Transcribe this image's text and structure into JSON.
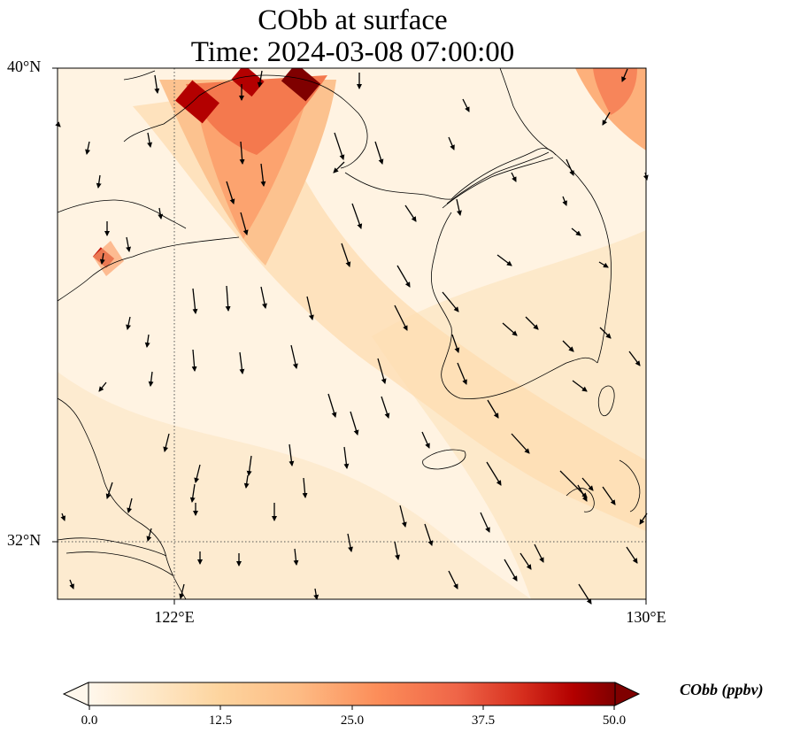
{
  "figure": {
    "title_line1": "CObb at surface",
    "title_line2": "Time: 2024-03-08 07:00:00"
  },
  "axes": {
    "lat_labels": [
      "40°N",
      "32°N"
    ],
    "lon_labels": [
      "122°E",
      "130°E"
    ],
    "lon_range": [
      120,
      130
    ],
    "lat_range": [
      31,
      40
    ],
    "gridlines": "dotted at 122°E and 32°N"
  },
  "colorbar": {
    "label": "CObb (ppbv)",
    "colormap": "OrRd",
    "ticks": [
      "0.0",
      "12.5",
      "25.0",
      "37.5",
      "50.0"
    ],
    "range": [
      0,
      50
    ],
    "extend": "both",
    "colors": [
      "#fff7ec",
      "#fdd49e",
      "#fc8d59",
      "#d7301f",
      "#7f0000"
    ]
  },
  "chart_data": {
    "type": "heatmap",
    "title": "CObb at surface\nTime: 2024-03-08 07:00:00",
    "variable": "CObb",
    "units": "ppbv",
    "vmin": 0,
    "vmax": 50,
    "overlay": "surface wind vectors, predominantly northerly to northwesterly",
    "hotspots": [
      {
        "lon": 122.5,
        "lat": 39.6,
        "value": 45
      },
      {
        "lon": 123.2,
        "lat": 39.8,
        "value": 48
      },
      {
        "lon": 124.1,
        "lat": 39.8,
        "value": 50
      },
      {
        "lon": 120.8,
        "lat": 36.8,
        "value": 45
      },
      {
        "lon": 129.0,
        "lat": 39.8,
        "value": 32
      }
    ]
  }
}
